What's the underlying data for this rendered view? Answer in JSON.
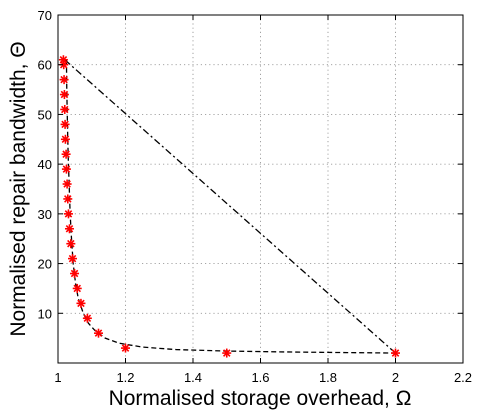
{
  "chart_data": {
    "type": "scatter",
    "xlabel": "Normalised storage overhead, Ω",
    "ylabel": "Normalised repair bandwidth, Θ",
    "xlim": [
      1,
      2.2
    ],
    "ylim": [
      0,
      70
    ],
    "xticks": [
      "1",
      "1.2",
      "1.4",
      "1.6",
      "1.8",
      "2",
      "2.2"
    ],
    "yticks": [
      "10",
      "20",
      "30",
      "40",
      "50",
      "60",
      "70"
    ],
    "grid": true,
    "series": [
      {
        "kind": "scatter",
        "marker": "asterisk",
        "color": "#ff0000",
        "x": [
          1.016,
          1.017,
          1.018,
          1.019,
          1.02,
          1.021,
          1.022,
          1.024,
          1.025,
          1.027,
          1.029,
          1.031,
          1.034,
          1.038,
          1.043,
          1.049,
          1.057,
          1.068,
          1.087,
          1.12,
          1.2,
          1.5,
          2.0
        ],
        "y": [
          61,
          60,
          57,
          54,
          51,
          48,
          45,
          42,
          39,
          36,
          33,
          30,
          27,
          24,
          21,
          18,
          15,
          12,
          9,
          6,
          3,
          2,
          2
        ]
      },
      {
        "kind": "line",
        "style": "dashed",
        "color": "#000000",
        "x": [
          1.025,
          1.026,
          1.028,
          1.03,
          1.033,
          1.036,
          1.04,
          1.045,
          1.052,
          1.06,
          1.075,
          1.09,
          1.11,
          1.14,
          1.18,
          1.25,
          1.35,
          1.5,
          1.7,
          2.0
        ],
        "y": [
          61,
          55,
          48,
          42,
          36,
          30,
          25,
          20,
          16,
          13,
          10,
          8,
          6.5,
          5,
          4,
          3.2,
          2.7,
          2.4,
          2.2,
          2
        ]
      },
      {
        "kind": "line",
        "style": "dashdot",
        "color": "#000000",
        "x": [
          1.02,
          2.0
        ],
        "y": [
          61,
          2
        ]
      }
    ]
  }
}
